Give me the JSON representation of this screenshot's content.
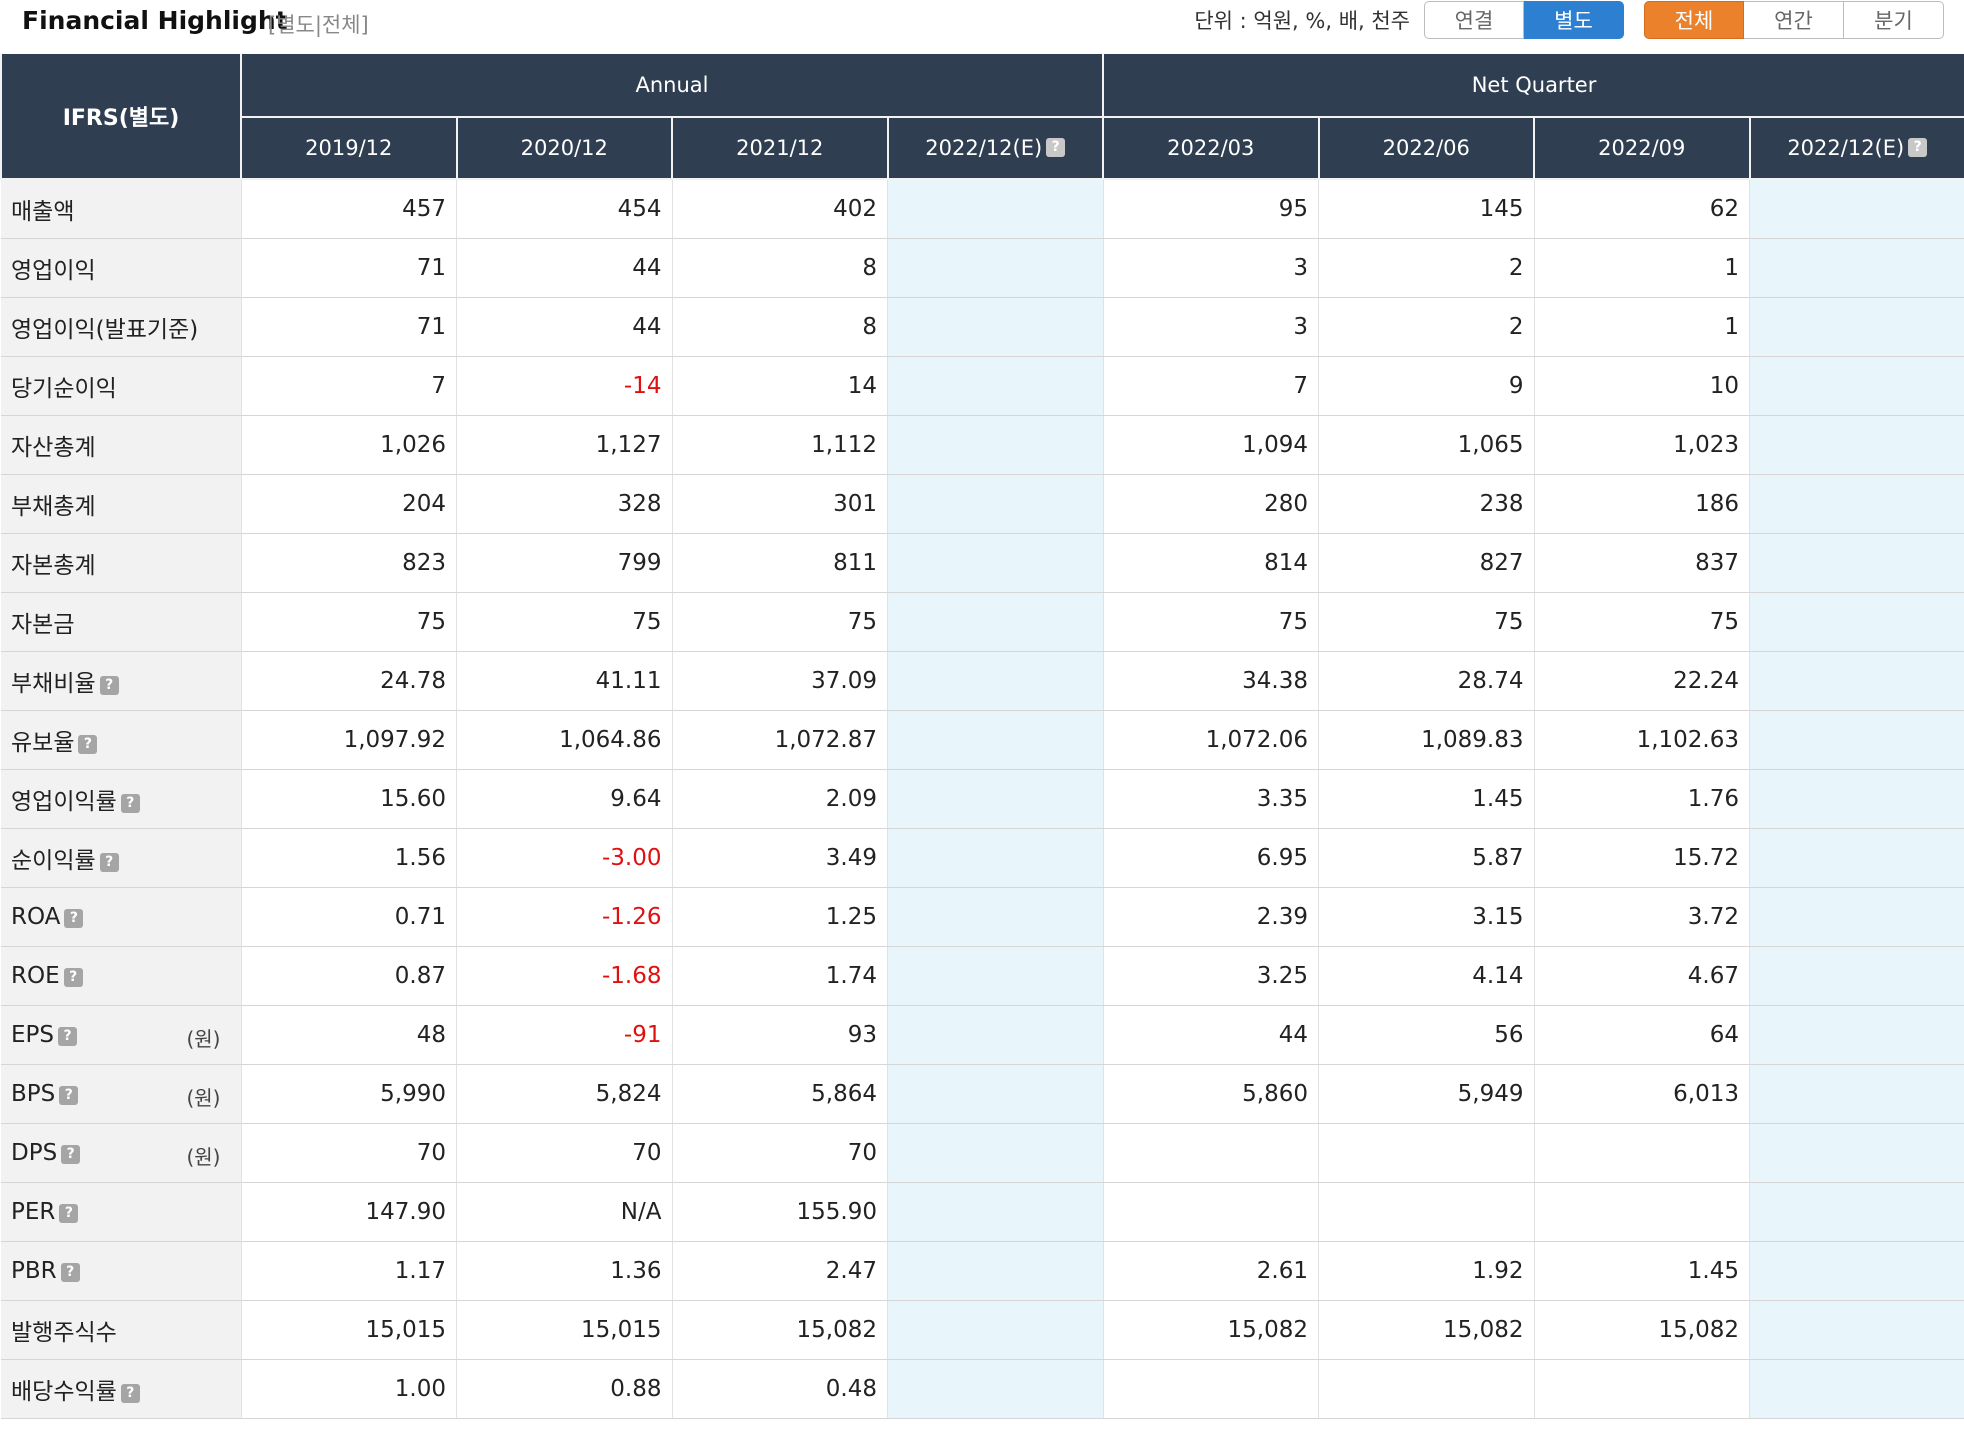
{
  "header": {
    "title": "Financial Highlight",
    "subtitle": "[별도|전체]",
    "unit_text": "단위 : 억원, %, 배, 천주",
    "scope_buttons": [
      {
        "label": "연결",
        "active": false
      },
      {
        "label": "별도",
        "active": true
      }
    ],
    "period_buttons": [
      {
        "label": "전체",
        "active": true
      },
      {
        "label": "연간",
        "active": false
      },
      {
        "label": "분기",
        "active": false
      }
    ]
  },
  "table": {
    "corner_label": "IFRS(별도)",
    "groups": [
      {
        "label": "Annual",
        "span": 4
      },
      {
        "label": "Net Quarter",
        "span": 4
      }
    ],
    "periods": [
      {
        "label": "2019/12",
        "help": false,
        "estimate": false
      },
      {
        "label": "2020/12",
        "help": false,
        "estimate": false
      },
      {
        "label": "2021/12",
        "help": false,
        "estimate": false
      },
      {
        "label": "2022/12(E)",
        "help": true,
        "estimate": true
      },
      {
        "label": "2022/03",
        "help": false,
        "estimate": false
      },
      {
        "label": "2022/06",
        "help": false,
        "estimate": false
      },
      {
        "label": "2022/09",
        "help": false,
        "estimate": false
      },
      {
        "label": "2022/12(E)",
        "help": true,
        "estimate": true
      }
    ],
    "help_glyph": "?",
    "rows": [
      {
        "label": "매출액",
        "help": false,
        "unit": "",
        "values": [
          "457",
          "454",
          "402",
          "",
          "95",
          "145",
          "62",
          ""
        ]
      },
      {
        "label": "영업이익",
        "help": false,
        "unit": "",
        "values": [
          "71",
          "44",
          "8",
          "",
          "3",
          "2",
          "1",
          ""
        ]
      },
      {
        "label": "영업이익(발표기준)",
        "help": false,
        "unit": "",
        "values": [
          "71",
          "44",
          "8",
          "",
          "3",
          "2",
          "1",
          ""
        ]
      },
      {
        "label": "당기순이익",
        "help": false,
        "unit": "",
        "values": [
          "7",
          "-14",
          "14",
          "",
          "7",
          "9",
          "10",
          ""
        ]
      },
      {
        "label": "자산총계",
        "help": false,
        "unit": "",
        "values": [
          "1,026",
          "1,127",
          "1,112",
          "",
          "1,094",
          "1,065",
          "1,023",
          ""
        ]
      },
      {
        "label": "부채총계",
        "help": false,
        "unit": "",
        "values": [
          "204",
          "328",
          "301",
          "",
          "280",
          "238",
          "186",
          ""
        ]
      },
      {
        "label": "자본총계",
        "help": false,
        "unit": "",
        "values": [
          "823",
          "799",
          "811",
          "",
          "814",
          "827",
          "837",
          ""
        ]
      },
      {
        "label": "자본금",
        "help": false,
        "unit": "",
        "values": [
          "75",
          "75",
          "75",
          "",
          "75",
          "75",
          "75",
          ""
        ]
      },
      {
        "label": "부채비율",
        "help": true,
        "unit": "",
        "values": [
          "24.78",
          "41.11",
          "37.09",
          "",
          "34.38",
          "28.74",
          "22.24",
          ""
        ]
      },
      {
        "label": "유보율",
        "help": true,
        "unit": "",
        "values": [
          "1,097.92",
          "1,064.86",
          "1,072.87",
          "",
          "1,072.06",
          "1,089.83",
          "1,102.63",
          ""
        ]
      },
      {
        "label": "영업이익률",
        "help": true,
        "unit": "",
        "values": [
          "15.60",
          "9.64",
          "2.09",
          "",
          "3.35",
          "1.45",
          "1.76",
          ""
        ]
      },
      {
        "label": "순이익률",
        "help": true,
        "unit": "",
        "values": [
          "1.56",
          "-3.00",
          "3.49",
          "",
          "6.95",
          "5.87",
          "15.72",
          ""
        ]
      },
      {
        "label": "ROA",
        "help": true,
        "unit": "",
        "values": [
          "0.71",
          "-1.26",
          "1.25",
          "",
          "2.39",
          "3.15",
          "3.72",
          ""
        ]
      },
      {
        "label": "ROE",
        "help": true,
        "unit": "",
        "values": [
          "0.87",
          "-1.68",
          "1.74",
          "",
          "3.25",
          "4.14",
          "4.67",
          ""
        ]
      },
      {
        "label": "EPS",
        "help": true,
        "unit": "(원)",
        "values": [
          "48",
          "-91",
          "93",
          "",
          "44",
          "56",
          "64",
          ""
        ]
      },
      {
        "label": "BPS",
        "help": true,
        "unit": "(원)",
        "values": [
          "5,990",
          "5,824",
          "5,864",
          "",
          "5,860",
          "5,949",
          "6,013",
          ""
        ]
      },
      {
        "label": "DPS",
        "help": true,
        "unit": "(원)",
        "values": [
          "70",
          "70",
          "70",
          "",
          "",
          "",
          "",
          ""
        ]
      },
      {
        "label": "PER",
        "help": true,
        "unit": "",
        "values": [
          "147.90",
          "N/A",
          "155.90",
          "",
          "",
          "",
          "",
          ""
        ]
      },
      {
        "label": "PBR",
        "help": true,
        "unit": "",
        "values": [
          "1.17",
          "1.36",
          "2.47",
          "",
          "2.61",
          "1.92",
          "1.45",
          ""
        ]
      },
      {
        "label": "발행주식수",
        "help": false,
        "unit": "",
        "values": [
          "15,015",
          "15,015",
          "15,082",
          "",
          "15,082",
          "15,082",
          "15,082",
          ""
        ]
      },
      {
        "label": "배당수익률",
        "help": true,
        "unit": "",
        "values": [
          "1.00",
          "0.88",
          "0.48",
          "",
          "",
          "",
          "",
          ""
        ]
      }
    ]
  },
  "colors": {
    "header_bg": "#2f3e51",
    "negative": "#e01010",
    "estimate_bg": "#e8f5fb",
    "active_scope": "#2d7fd2",
    "active_period": "#ec812c"
  }
}
